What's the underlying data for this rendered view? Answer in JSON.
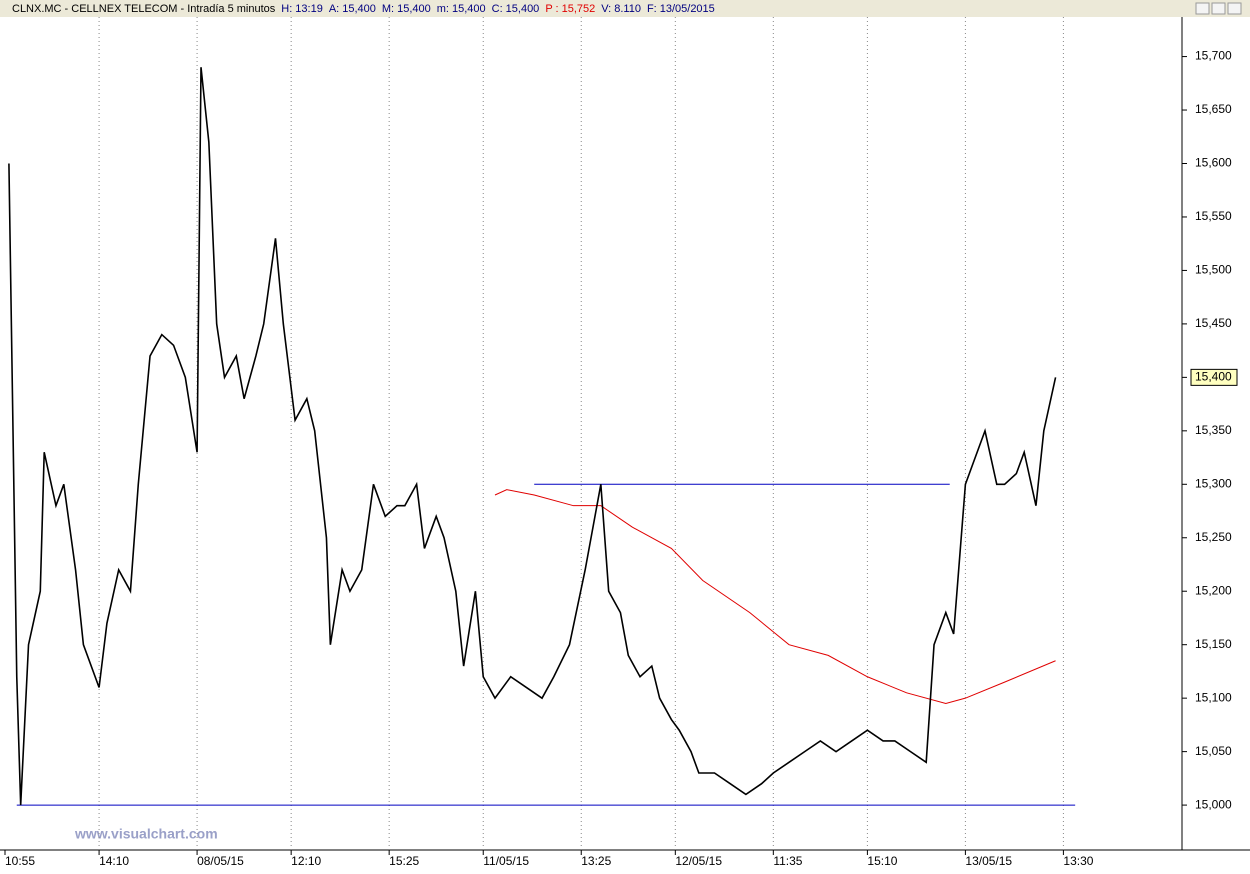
{
  "chart_data": {
    "type": "line",
    "header": {
      "title": "CLNX.MC - CELLNEX TELECOM - Intradía 5 minutos",
      "stats": [
        {
          "label": "H:",
          "value": "13:19",
          "color": "#000080"
        },
        {
          "label": "A:",
          "value": "15,400",
          "color": "#000080"
        },
        {
          "label": "M:",
          "value": "15,400",
          "color": "#000080"
        },
        {
          "label": "m:",
          "value": "15,400",
          "color": "#000080"
        },
        {
          "label": "C:",
          "value": "15,400",
          "color": "#000080"
        },
        {
          "label": "P :",
          "value": "15,752",
          "color": "#e00000"
        },
        {
          "label": "V:",
          "value": "8.110",
          "color": "#000080"
        },
        {
          "label": "F:",
          "value": "13/05/2015",
          "color": "#000080"
        }
      ]
    },
    "watermark": "www.visualchart.com",
    "x": [
      1,
      3,
      4,
      6,
      9,
      10,
      13,
      15,
      18,
      20,
      24,
      26,
      29,
      32,
      34,
      37,
      40,
      43,
      46,
      49,
      50,
      52,
      54,
      56,
      59,
      61,
      64,
      66,
      69,
      71,
      74,
      77,
      79,
      82,
      83,
      86,
      88,
      91,
      94,
      97,
      100,
      102,
      105,
      107,
      110,
      112,
      115,
      117,
      120,
      122,
      125,
      129,
      133,
      137,
      140,
      144,
      148,
      151,
      152,
      154,
      157,
      159,
      162,
      165,
      167,
      170,
      172,
      175,
      177,
      181,
      185,
      189,
      193,
      196,
      200,
      204,
      208,
      212,
      216,
      220,
      224,
      227,
      231,
      235,
      237,
      240,
      242,
      245,
      247,
      250,
      253,
      255,
      258,
      260,
      263,
      265,
      268
    ],
    "values": [
      15.6,
      15.12,
      15.0,
      15.15,
      15.2,
      15.33,
      15.28,
      15.3,
      15.22,
      15.15,
      15.11,
      15.17,
      15.22,
      15.2,
      15.3,
      15.42,
      15.44,
      15.43,
      15.4,
      15.33,
      15.69,
      15.62,
      15.45,
      15.4,
      15.42,
      15.38,
      15.42,
      15.45,
      15.53,
      15.45,
      15.36,
      15.38,
      15.35,
      15.25,
      15.15,
      15.22,
      15.2,
      15.22,
      15.3,
      15.27,
      15.28,
      15.28,
      15.3,
      15.24,
      15.27,
      15.25,
      15.2,
      15.13,
      15.2,
      15.12,
      15.1,
      15.12,
      15.11,
      15.1,
      15.12,
      15.15,
      15.22,
      15.28,
      15.3,
      15.2,
      15.18,
      15.14,
      15.12,
      15.13,
      15.1,
      15.08,
      15.07,
      15.05,
      15.03,
      15.03,
      15.02,
      15.01,
      15.02,
      15.03,
      15.04,
      15.05,
      15.06,
      15.05,
      15.06,
      15.07,
      15.06,
      15.06,
      15.05,
      15.04,
      15.15,
      15.18,
      15.16,
      15.3,
      15.32,
      15.35,
      15.3,
      15.3,
      15.31,
      15.33,
      15.28,
      15.35,
      15.4
    ],
    "color": "#000000",
    "moving_average": {
      "color": "#e00000",
      "x": [
        125,
        128,
        135,
        145,
        152,
        160,
        170,
        178,
        190,
        200,
        210,
        220,
        230,
        240,
        245,
        255,
        268
      ],
      "values": [
        15.29,
        15.295,
        15.29,
        15.28,
        15.28,
        15.26,
        15.24,
        15.21,
        15.18,
        15.15,
        15.14,
        15.12,
        15.105,
        15.095,
        15.1,
        15.115,
        15.135
      ]
    },
    "trend_lines": [
      {
        "color": "#0000c0",
        "x": [
          135,
          241
        ],
        "values": [
          15.3,
          15.3
        ]
      },
      {
        "color": "#0000c0",
        "x": [
          3,
          273
        ],
        "values": [
          15.0,
          15.0
        ]
      }
    ],
    "last_price": {
      "value": 15.4,
      "label": "15,400"
    },
    "xlim": [
      0,
      300
    ],
    "xticks": [
      {
        "value": 0,
        "label": "10:55"
      },
      {
        "value": 24,
        "label": "14:10"
      },
      {
        "value": 49,
        "label": "08/05/15"
      },
      {
        "value": 73,
        "label": "12:10"
      },
      {
        "value": 98,
        "label": "15:25"
      },
      {
        "value": 122,
        "label": "11/05/15"
      },
      {
        "value": 147,
        "label": "13:25"
      },
      {
        "value": 171,
        "label": "12/05/15"
      },
      {
        "value": 196,
        "label": "11:35"
      },
      {
        "value": 220,
        "label": "15:10"
      },
      {
        "value": 245,
        "label": "13/05/15"
      },
      {
        "value": 270,
        "label": "13:30"
      }
    ],
    "ylim": [
      14.958,
      15.737
    ],
    "yticks": [
      {
        "value": 15.0,
        "label": "15,000"
      },
      {
        "value": 15.05,
        "label": "15,050"
      },
      {
        "value": 15.1,
        "label": "15,100"
      },
      {
        "value": 15.15,
        "label": "15,150"
      },
      {
        "value": 15.2,
        "label": "15,200"
      },
      {
        "value": 15.25,
        "label": "15,250"
      },
      {
        "value": 15.3,
        "label": "15,300"
      },
      {
        "value": 15.35,
        "label": "15,350"
      },
      {
        "value": 15.4,
        "label": "15,400"
      },
      {
        "value": 15.45,
        "label": "15,450"
      },
      {
        "value": 15.5,
        "label": "15,500"
      },
      {
        "value": 15.55,
        "label": "15,550"
      },
      {
        "value": 15.6,
        "label": "15,600"
      },
      {
        "value": 15.65,
        "label": "15,650"
      },
      {
        "value": 15.7,
        "label": "15,700"
      }
    ],
    "grid": true
  }
}
